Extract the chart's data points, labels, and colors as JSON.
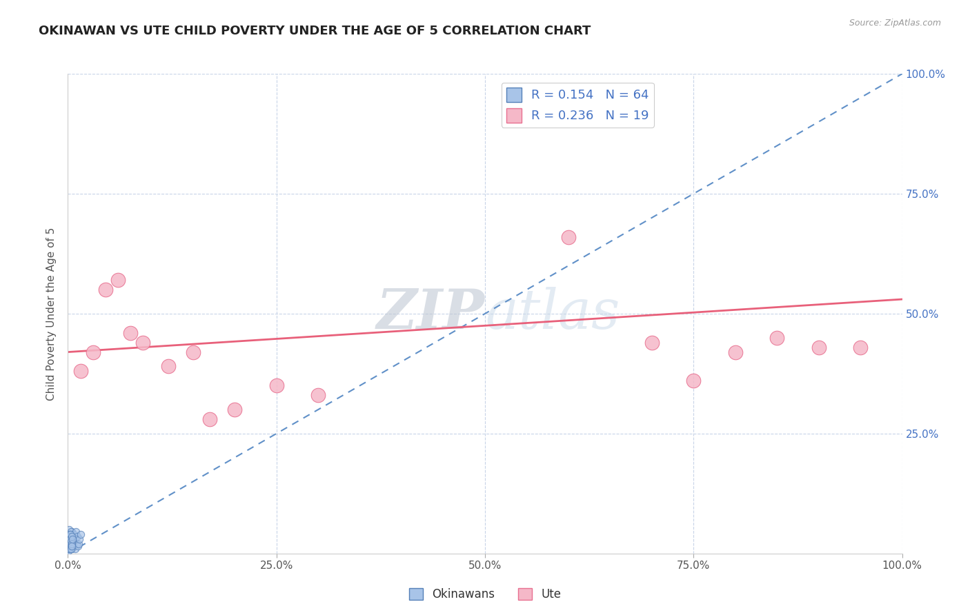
{
  "title": "OKINAWAN VS UTE CHILD POVERTY UNDER THE AGE OF 5 CORRELATION CHART",
  "source_text": "Source: ZipAtlas.com",
  "ylabel": "Child Poverty Under the Age of 5",
  "xlim": [
    0,
    100
  ],
  "ylim": [
    0,
    100
  ],
  "xticks": [
    0,
    25,
    50,
    75,
    100
  ],
  "yticks": [
    25,
    50,
    75,
    100
  ],
  "xticklabels": [
    "0.0%",
    "25.0%",
    "50.0%",
    "75.0%",
    "100.0%"
  ],
  "yticklabels": [
    "25.0%",
    "50.0%",
    "75.0%",
    "100.0%"
  ],
  "background_color": "#ffffff",
  "grid_color": "#c8d4e8",
  "okinawan_color": "#a8c4e8",
  "ute_color": "#f5b8c8",
  "okinawan_edge": "#5580b8",
  "ute_edge": "#e87090",
  "okinawan_R": 0.154,
  "okinawan_N": 64,
  "ute_R": 0.236,
  "ute_N": 19,
  "legend_label_okinawan": "Okinawans",
  "legend_label_ute": "Ute",
  "okinawan_scatter_x": [
    0.1,
    0.2,
    0.3,
    0.15,
    0.25,
    0.35,
    0.4,
    0.5,
    0.45,
    0.55,
    0.1,
    0.2,
    0.3,
    0.15,
    0.25,
    0.35,
    0.4,
    0.5,
    0.12,
    0.22,
    0.18,
    0.28,
    0.38,
    0.42,
    0.52,
    0.08,
    0.16,
    0.24,
    0.32,
    0.48,
    0.6,
    0.65,
    0.7,
    0.75,
    0.8,
    0.85,
    0.9,
    0.95,
    1.0,
    1.1,
    1.2,
    1.3,
    1.4,
    1.5,
    0.05,
    0.07,
    0.09,
    0.11,
    0.13,
    0.17,
    0.19,
    0.21,
    0.23,
    0.27,
    0.29,
    0.31,
    0.33,
    0.37,
    0.39,
    0.41,
    0.43,
    0.47,
    0.49,
    0.51
  ],
  "okinawan_scatter_y": [
    2.0,
    1.5,
    3.0,
    4.0,
    2.5,
    1.0,
    3.5,
    2.0,
    4.5,
    3.0,
    5.0,
    1.5,
    2.5,
    3.5,
    1.0,
    4.0,
    2.0,
    3.0,
    1.5,
    2.0,
    3.5,
    1.0,
    4.5,
    2.5,
    3.0,
    1.5,
    2.0,
    4.0,
    2.5,
    1.0,
    3.5,
    2.0,
    4.0,
    1.5,
    2.5,
    3.0,
    1.0,
    4.5,
    2.0,
    3.5,
    1.5,
    2.0,
    3.0,
    4.0,
    0.5,
    1.0,
    2.5,
    1.5,
    3.0,
    2.0,
    1.0,
    3.5,
    2.5,
    1.5,
    4.0,
    2.0,
    3.0,
    1.5,
    2.5,
    1.0,
    3.5,
    2.0,
    1.5,
    3.0
  ],
  "ute_scatter_x": [
    1.5,
    3.0,
    4.5,
    6.0,
    7.5,
    9.0,
    12.0,
    15.0,
    17.0,
    20.0,
    25.0,
    30.0,
    60.0,
    70.0,
    75.0,
    80.0,
    85.0,
    90.0,
    95.0
  ],
  "ute_scatter_y": [
    38.0,
    42.0,
    55.0,
    57.0,
    46.0,
    44.0,
    39.0,
    42.0,
    28.0,
    30.0,
    35.0,
    33.0,
    66.0,
    44.0,
    36.0,
    42.0,
    45.0,
    43.0,
    43.0
  ],
  "okinawan_line_x0": 0,
  "okinawan_line_x1": 100,
  "okinawan_line_y0": 0,
  "okinawan_line_y1": 100,
  "ute_line_x0": 0,
  "ute_line_x1": 100,
  "ute_line_y0": 42.0,
  "ute_line_y1": 53.0,
  "tick_color": "#4472c4",
  "ylabel_color": "#555555",
  "title_color": "#222222"
}
